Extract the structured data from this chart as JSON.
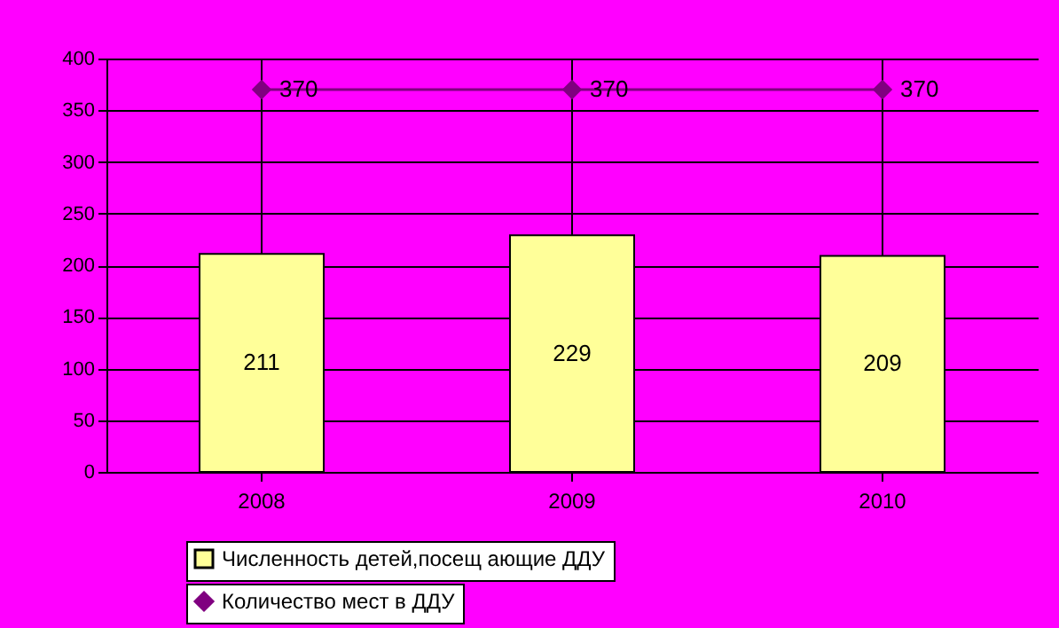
{
  "chart_data": {
    "type": "bar",
    "categories": [
      "2008",
      "2009",
      "2010"
    ],
    "series": [
      {
        "name": "Численность детей,посещ ающие ДДУ",
        "color": "#ffff99",
        "values": [
          211,
          229,
          209
        ]
      },
      {
        "name": "Количество мест в ДДУ",
        "type": "line",
        "color": "#800080",
        "values": [
          370,
          370,
          370
        ]
      }
    ],
    "ylim": [
      0,
      400
    ],
    "yticks": [
      0,
      50,
      100,
      150,
      200,
      250,
      300,
      350,
      400
    ],
    "grid": true,
    "legend": "bottom",
    "marker": "diamond",
    "data_labels": true
  }
}
